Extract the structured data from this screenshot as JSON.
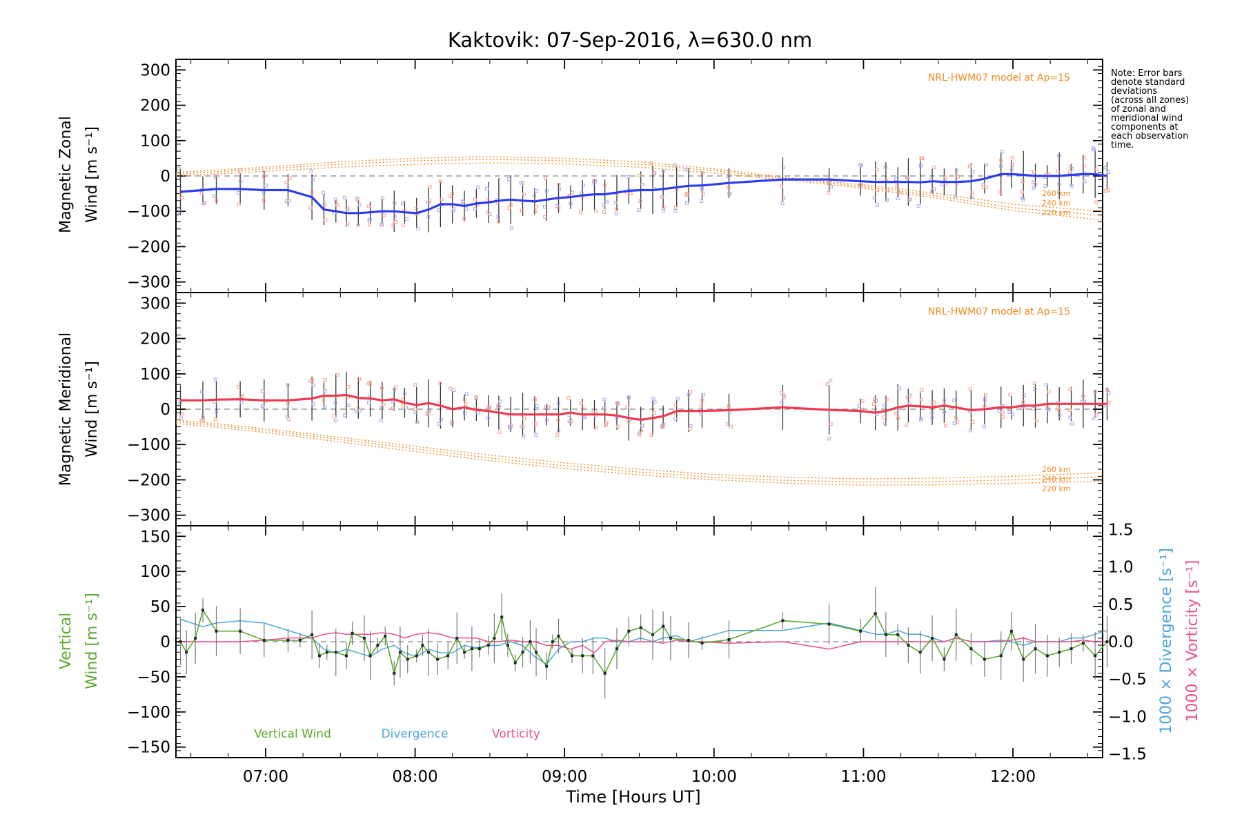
{
  "title": "Kaktovik: 07-Sep-2016, λ=630.0 nm",
  "note": {
    "lines": [
      "Note: Error bars",
      "denote standard",
      "deviations",
      "(across all zones)",
      "of zonal and",
      "meridional wind",
      "components at",
      "each observation",
      "time."
    ]
  },
  "colors": {
    "zonal": "#2d3cf0",
    "meridional": "#ef3a4f",
    "model": "#f28a1f",
    "vertical": "#5aa82a",
    "divergence": "#4aa6d8",
    "vorticity": "#ec4f86",
    "zone_points": "#a9a6e6",
    "zone_points_alt": "#f4a08c",
    "errorbar": "#333333",
    "zero_line": "#888888"
  },
  "xaxis": {
    "label": "Time [Hours UT]",
    "range": [
      6.4,
      12.6
    ],
    "ticks": [
      7,
      8,
      9,
      10,
      11,
      12
    ],
    "tick_labels": [
      "07:00",
      "08:00",
      "09:00",
      "10:00",
      "11:00",
      "12:00"
    ]
  },
  "panels": {
    "zonal": {
      "ylabel_lines": [
        "Magnetic Zonal",
        "Wind [m s⁻¹]"
      ],
      "ylim": [
        -330,
        330
      ],
      "ticks": [
        -300,
        -200,
        -100,
        0,
        100,
        200,
        300
      ],
      "tick_labels": [
        "−300",
        "−200",
        "−100",
        "0",
        "100",
        "200",
        "300"
      ],
      "model_label": "NRL-HWM07 model at Ap=15",
      "model_alt_labels": [
        "260 km",
        "240 km",
        "220 km"
      ]
    },
    "meridional": {
      "ylabel_lines": [
        "Magnetic Meridional",
        "Wind [m s⁻¹]"
      ],
      "ylim": [
        -330,
        330
      ],
      "ticks": [
        -300,
        -200,
        -100,
        0,
        100,
        200,
        300
      ],
      "tick_labels": [
        "−300",
        "−200",
        "−100",
        "0",
        "100",
        "200",
        "300"
      ],
      "model_label": "NRL-HWM07 model at Ap=15",
      "model_alt_labels": [
        "260 km",
        "240 km",
        "220 km"
      ]
    },
    "vertical": {
      "ylabel_lines": [
        "Vertical",
        "Wind [m s⁻¹]"
      ],
      "ylim": [
        -165,
        165
      ],
      "ticks": [
        -150,
        -100,
        -50,
        0,
        50,
        100,
        150
      ],
      "tick_labels": [
        "−150",
        "−100",
        "−50",
        "0",
        "50",
        "100",
        "150"
      ],
      "y2lim": [
        -1.55,
        1.55
      ],
      "y2_ticks": [
        -1.5,
        -1.0,
        -0.5,
        0.0,
        0.5,
        1.0,
        1.5
      ],
      "y2_tick_labels": [
        "−1.5",
        "−1.0",
        "−0.5",
        "0.0",
        "0.5",
        "1.0",
        "1.5"
      ],
      "y2_label_div": "1000 × Divergence [s⁻¹]",
      "y2_label_vort": "1000 × Vorticity [s⁻¹]",
      "legend": [
        "Vertical Wind",
        "Divergence",
        "Vorticity"
      ]
    }
  },
  "chart_data": [
    {
      "type": "line",
      "title": "Kaktovik: 07-Sep-2016, λ=630.0 nm",
      "xlabel": "Time [Hours UT]",
      "ylabel": "Magnetic Zonal Wind [m s⁻¹]",
      "ylim": [
        -330,
        330
      ],
      "series": [
        {
          "name": "Zonal wind",
          "x": [
            6.43,
            6.58,
            6.67,
            6.83,
            6.99,
            7.15,
            7.31,
            7.39,
            7.47,
            7.54,
            7.62,
            7.7,
            7.78,
            7.86,
            7.93,
            8.01,
            8.09,
            8.17,
            8.25,
            8.33,
            8.41,
            8.49,
            8.56,
            8.64,
            8.72,
            8.8,
            8.88,
            8.96,
            9.04,
            9.12,
            9.2,
            9.27,
            9.35,
            9.43,
            9.51,
            9.59,
            9.66,
            9.75,
            9.83,
            9.92,
            10.1,
            10.46,
            10.77,
            10.98,
            11.08,
            11.15,
            11.23,
            11.3,
            11.38,
            11.46,
            11.54,
            11.62,
            11.72,
            11.81,
            11.92,
            11.99,
            12.07,
            12.15,
            12.23,
            12.31,
            12.39,
            12.47,
            12.55,
            12.63
          ],
          "values": [
            -45,
            -40,
            -37,
            -37,
            -40,
            -40,
            -60,
            -95,
            -100,
            -105,
            -105,
            -103,
            -100,
            -100,
            -103,
            -105,
            -95,
            -80,
            -80,
            -85,
            -78,
            -75,
            -70,
            -67,
            -70,
            -72,
            -67,
            -62,
            -60,
            -55,
            -52,
            -52,
            -47,
            -42,
            -40,
            -40,
            -37,
            -32,
            -28,
            -27,
            -20,
            -10,
            -10,
            -15,
            -17,
            -17,
            -17,
            -17,
            -18,
            -15,
            -17,
            -17,
            -15,
            -8,
            5,
            5,
            3,
            0,
            0,
            0,
            3,
            5,
            5,
            0
          ]
        },
        {
          "name": "NRL-HWM07 260 km",
          "x": [
            6.4,
            7.0,
            7.5,
            8.0,
            8.5,
            9.0,
            9.5,
            10.0,
            10.5,
            11.0,
            11.5,
            12.0,
            12.6
          ],
          "values": [
            10,
            25,
            40,
            50,
            55,
            50,
            40,
            20,
            -5,
            -25,
            -50,
            -80,
            -100
          ]
        },
        {
          "name": "NRL-HWM07 240 km",
          "x": [
            6.4,
            7.0,
            7.5,
            8.0,
            8.5,
            9.0,
            9.5,
            10.0,
            10.5,
            11.0,
            11.5,
            12.0,
            12.6
          ],
          "values": [
            5,
            20,
            33,
            43,
            47,
            43,
            33,
            15,
            -8,
            -30,
            -57,
            -90,
            -112
          ]
        },
        {
          "name": "NRL-HWM07 220 km",
          "x": [
            6.4,
            7.0,
            7.5,
            8.0,
            8.5,
            9.0,
            9.5,
            10.0,
            10.5,
            11.0,
            11.5,
            12.0,
            12.6
          ],
          "values": [
            0,
            13,
            25,
            33,
            37,
            34,
            25,
            8,
            -12,
            -35,
            -63,
            -98,
            -125
          ]
        }
      ]
    },
    {
      "type": "line",
      "xlabel": "Time [Hours UT]",
      "ylabel": "Magnetic Meridional Wind [m s⁻¹]",
      "ylim": [
        -330,
        330
      ],
      "series": [
        {
          "name": "Meridional wind",
          "x": [
            6.43,
            6.58,
            6.67,
            6.83,
            6.99,
            7.15,
            7.31,
            7.39,
            7.47,
            7.54,
            7.62,
            7.7,
            7.78,
            7.86,
            7.93,
            8.01,
            8.09,
            8.17,
            8.25,
            8.33,
            8.41,
            8.49,
            8.56,
            8.64,
            8.72,
            8.8,
            8.88,
            8.96,
            9.04,
            9.12,
            9.2,
            9.27,
            9.35,
            9.43,
            9.51,
            9.59,
            9.66,
            9.75,
            9.83,
            9.92,
            10.1,
            10.46,
            10.77,
            10.98,
            11.08,
            11.15,
            11.23,
            11.3,
            11.38,
            11.46,
            11.54,
            11.62,
            11.72,
            11.81,
            11.92,
            11.99,
            12.07,
            12.15,
            12.23,
            12.31,
            12.39,
            12.47,
            12.55,
            12.63
          ],
          "values": [
            25,
            25,
            27,
            28,
            25,
            25,
            30,
            38,
            38,
            40,
            32,
            30,
            25,
            28,
            18,
            12,
            17,
            10,
            0,
            5,
            -2,
            -5,
            -10,
            -15,
            -15,
            -15,
            -15,
            -15,
            -10,
            -15,
            -15,
            -15,
            -18,
            -25,
            -30,
            -25,
            -20,
            -5,
            -5,
            -5,
            -3,
            5,
            -2,
            -5,
            -10,
            -5,
            5,
            10,
            8,
            5,
            10,
            5,
            -3,
            0,
            5,
            5,
            10,
            10,
            15,
            15,
            15,
            15,
            15,
            15
          ]
        },
        {
          "name": "NRL-HWM07 260 km",
          "x": [
            6.4,
            7.0,
            7.5,
            8.0,
            8.5,
            9.0,
            9.5,
            10.0,
            10.5,
            11.0,
            11.5,
            12.0,
            12.6
          ],
          "values": [
            -30,
            -55,
            -80,
            -105,
            -130,
            -152,
            -170,
            -185,
            -193,
            -197,
            -195,
            -190,
            -180
          ]
        },
        {
          "name": "NRL-HWM07 240 km",
          "x": [
            6.4,
            7.0,
            7.5,
            8.0,
            8.5,
            9.0,
            9.5,
            10.0,
            10.5,
            11.0,
            11.5,
            12.0,
            12.6
          ],
          "values": [
            -35,
            -60,
            -86,
            -112,
            -138,
            -160,
            -178,
            -193,
            -202,
            -206,
            -205,
            -200,
            -192
          ]
        },
        {
          "name": "NRL-HWM07 220 km",
          "x": [
            6.4,
            7.0,
            7.5,
            8.0,
            8.5,
            9.0,
            9.5,
            10.0,
            10.5,
            11.0,
            11.5,
            12.0,
            12.6
          ],
          "values": [
            -40,
            -66,
            -93,
            -120,
            -146,
            -168,
            -186,
            -200,
            -210,
            -215,
            -214,
            -210,
            -204
          ]
        }
      ]
    },
    {
      "type": "line",
      "xlabel": "Time [Hours UT]",
      "ylabel": "Vertical Wind [m s⁻¹]",
      "ylim": [
        -165,
        165
      ],
      "series": [
        {
          "name": "Vertical Wind",
          "x": [
            6.43,
            6.47,
            6.53,
            6.58,
            6.67,
            6.83,
            6.99,
            7.15,
            7.23,
            7.31,
            7.36,
            7.41,
            7.47,
            7.54,
            7.58,
            7.66,
            7.7,
            7.75,
            7.8,
            7.86,
            7.9,
            7.95,
            8.01,
            8.05,
            8.09,
            8.15,
            8.22,
            8.28,
            8.33,
            8.38,
            8.43,
            8.49,
            8.53,
            8.58,
            8.62,
            8.67,
            8.72,
            8.77,
            8.81,
            8.88,
            8.92,
            8.96,
            9.05,
            9.12,
            9.19,
            9.27,
            9.35,
            9.43,
            9.51,
            9.59,
            9.66,
            9.71,
            9.83,
            9.92,
            10.1,
            10.46,
            10.77,
            10.98,
            11.08,
            11.15,
            11.23,
            11.3,
            11.38,
            11.46,
            11.54,
            11.62,
            11.72,
            11.81,
            11.92,
            11.99,
            12.07,
            12.15,
            12.23,
            12.31,
            12.39,
            12.47,
            12.55,
            12.63
          ],
          "values": [
            0,
            -15,
            5,
            45,
            15,
            15,
            2,
            2,
            2,
            10,
            -20,
            -15,
            -15,
            -20,
            12,
            5,
            -20,
            -5,
            8,
            -45,
            -15,
            -25,
            -20,
            -5,
            -15,
            -25,
            -20,
            5,
            -15,
            -10,
            -10,
            -5,
            5,
            35,
            -5,
            -30,
            -15,
            0,
            -15,
            -35,
            0,
            8,
            -20,
            -20,
            -20,
            -45,
            -10,
            15,
            20,
            10,
            22,
            5,
            2,
            -2,
            3,
            30,
            25,
            15,
            40,
            10,
            10,
            -5,
            -15,
            5,
            -25,
            10,
            -10,
            -25,
            -20,
            15,
            -25,
            -10,
            -20,
            -15,
            -10,
            -2,
            -20,
            0
          ]
        },
        {
          "name": "Divergence",
          "x": [
            6.43,
            6.58,
            6.67,
            6.83,
            6.99,
            7.15,
            7.31,
            7.39,
            7.47,
            7.54,
            7.62,
            7.7,
            7.78,
            7.86,
            7.93,
            8.01,
            8.09,
            8.17,
            8.25,
            8.33,
            8.41,
            8.49,
            8.56,
            8.64,
            8.72,
            8.8,
            8.88,
            8.96,
            9.04,
            9.12,
            9.2,
            9.27,
            9.35,
            9.43,
            9.51,
            9.59,
            9.66,
            9.75,
            9.83,
            9.92,
            10.1,
            10.46,
            10.77,
            10.98,
            11.08,
            11.15,
            11.23,
            11.3,
            11.38,
            11.46,
            11.54,
            11.62,
            11.72,
            11.81,
            11.92,
            11.99,
            12.07,
            12.15,
            12.23,
            12.31,
            12.39,
            12.47,
            12.55,
            12.63
          ],
          "values": [
            0.3,
            0.2,
            0.25,
            0.28,
            0.25,
            0.15,
            0.05,
            -0.1,
            -0.15,
            -0.1,
            -0.15,
            -0.2,
            -0.1,
            -0.05,
            -0.15,
            -0.2,
            -0.1,
            -0.15,
            -0.15,
            -0.05,
            -0.08,
            -0.05,
            -0.05,
            0.0,
            -0.05,
            -0.2,
            -0.3,
            -0.1,
            0.0,
            0.0,
            0.05,
            0.05,
            0.0,
            0.0,
            0.05,
            0.0,
            0.05,
            0.08,
            0.0,
            0.05,
            0.15,
            0.15,
            0.25,
            0.15,
            0.1,
            0.1,
            0.15,
            0.1,
            0.1,
            0.05,
            0.0,
            0.05,
            0.0,
            0.0,
            0.02,
            0.0,
            -0.05,
            0.0,
            0.0,
            0.0,
            0.05,
            0.05,
            0.1,
            0.15
          ]
        },
        {
          "name": "Vorticity",
          "x": [
            6.43,
            6.58,
            6.67,
            6.83,
            6.99,
            7.15,
            7.31,
            7.39,
            7.47,
            7.54,
            7.62,
            7.7,
            7.78,
            7.86,
            7.93,
            8.01,
            8.09,
            8.17,
            8.25,
            8.33,
            8.41,
            8.49,
            8.56,
            8.64,
            8.72,
            8.8,
            8.88,
            8.96,
            9.04,
            9.12,
            9.2,
            9.27,
            9.35,
            9.43,
            9.51,
            9.59,
            9.66,
            9.75,
            9.83,
            9.92,
            10.1,
            10.46,
            10.77,
            10.98,
            11.08,
            11.15,
            11.23,
            11.3,
            11.38,
            11.46,
            11.54,
            11.62,
            11.72,
            11.81,
            11.92,
            11.99,
            12.07,
            12.15,
            12.23,
            12.31,
            12.39,
            12.47,
            12.55,
            12.63
          ],
          "values": [
            0.0,
            0.0,
            0.0,
            0.0,
            0.02,
            0.05,
            0.05,
            0.1,
            0.12,
            0.1,
            0.1,
            0.1,
            0.12,
            0.1,
            0.05,
            0.1,
            0.12,
            0.1,
            0.05,
            0.05,
            0.05,
            0.0,
            0.0,
            0.02,
            0.0,
            0.0,
            -0.05,
            -0.05,
            -0.1,
            -0.05,
            -0.15,
            0.0,
            0.02,
            0.0,
            0.0,
            0.0,
            -0.02,
            0.02,
            0.0,
            0.0,
            -0.02,
            0.0,
            -0.1,
            0.0,
            0.0,
            0.0,
            0.0,
            0.0,
            0.0,
            0.0,
            0.0,
            0.05,
            0.0,
            0.0,
            0.0,
            0.02,
            0.05,
            0.0,
            0.0,
            0.0,
            0.0,
            0.02,
            0.0,
            0.0
          ]
        }
      ]
    }
  ]
}
